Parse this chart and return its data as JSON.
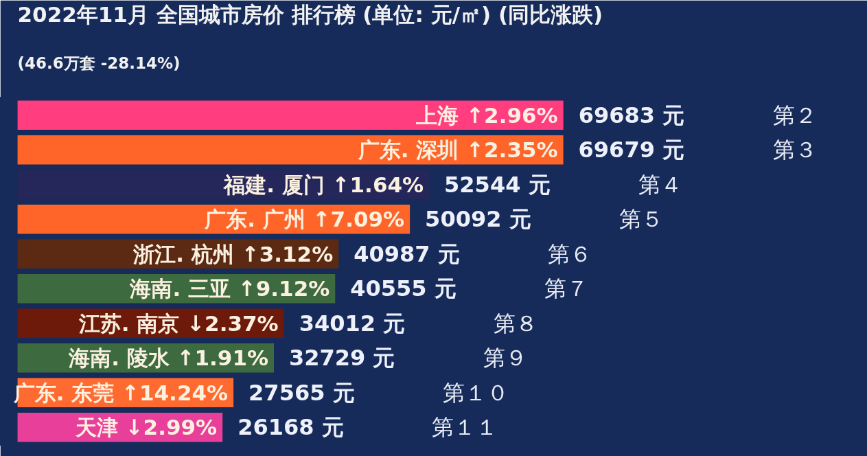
{
  "chart_data": {
    "type": "bar",
    "orientation": "horizontal",
    "title": "2022年11月 全国城市房价 排行榜 (单位: 元/㎡) (同比涨跌)",
    "subtitle": "(46.6万套 -28.14%)",
    "categories": [
      "上海 ↑2.96%",
      "广东. 深圳 ↑2.35%",
      "福建. 厦门 ↑1.64%",
      "广东. 广州 ↑7.09%",
      "浙江. 杭州 ↑3.12%",
      "海南. 三亚 ↑9.12%",
      "江苏. 南京 ↓2.37%",
      "海南. 陵水 ↑1.91%",
      "广东. 东莞 ↑14.24%",
      "天津 ↓2.99%"
    ],
    "values": [
      69683,
      69679,
      52544,
      50092,
      40987,
      40555,
      34012,
      32729,
      27565,
      26168
    ],
    "value_labels": [
      "69683 元",
      "69679 元",
      "52544 元",
      "50092 元",
      "40987 元",
      "40555 元",
      "34012 元",
      "32729 元",
      "27565 元",
      "26168 元"
    ],
    "colors": [
      "#ff3d7f",
      "#ff6428",
      "#25265a",
      "#ff6428",
      "#5c2a12",
      "#3e6a40",
      "#6e1a0a",
      "#3e6a40",
      "#ff6a30",
      "#e8409a"
    ],
    "annotations": [
      "第２",
      "第３",
      "第４",
      "第５",
      "第６",
      "第７",
      "第８",
      "第９",
      "第１０",
      "第１１"
    ],
    "xlim": [
      -2200,
      108500
    ],
    "tick_labels": false
  }
}
